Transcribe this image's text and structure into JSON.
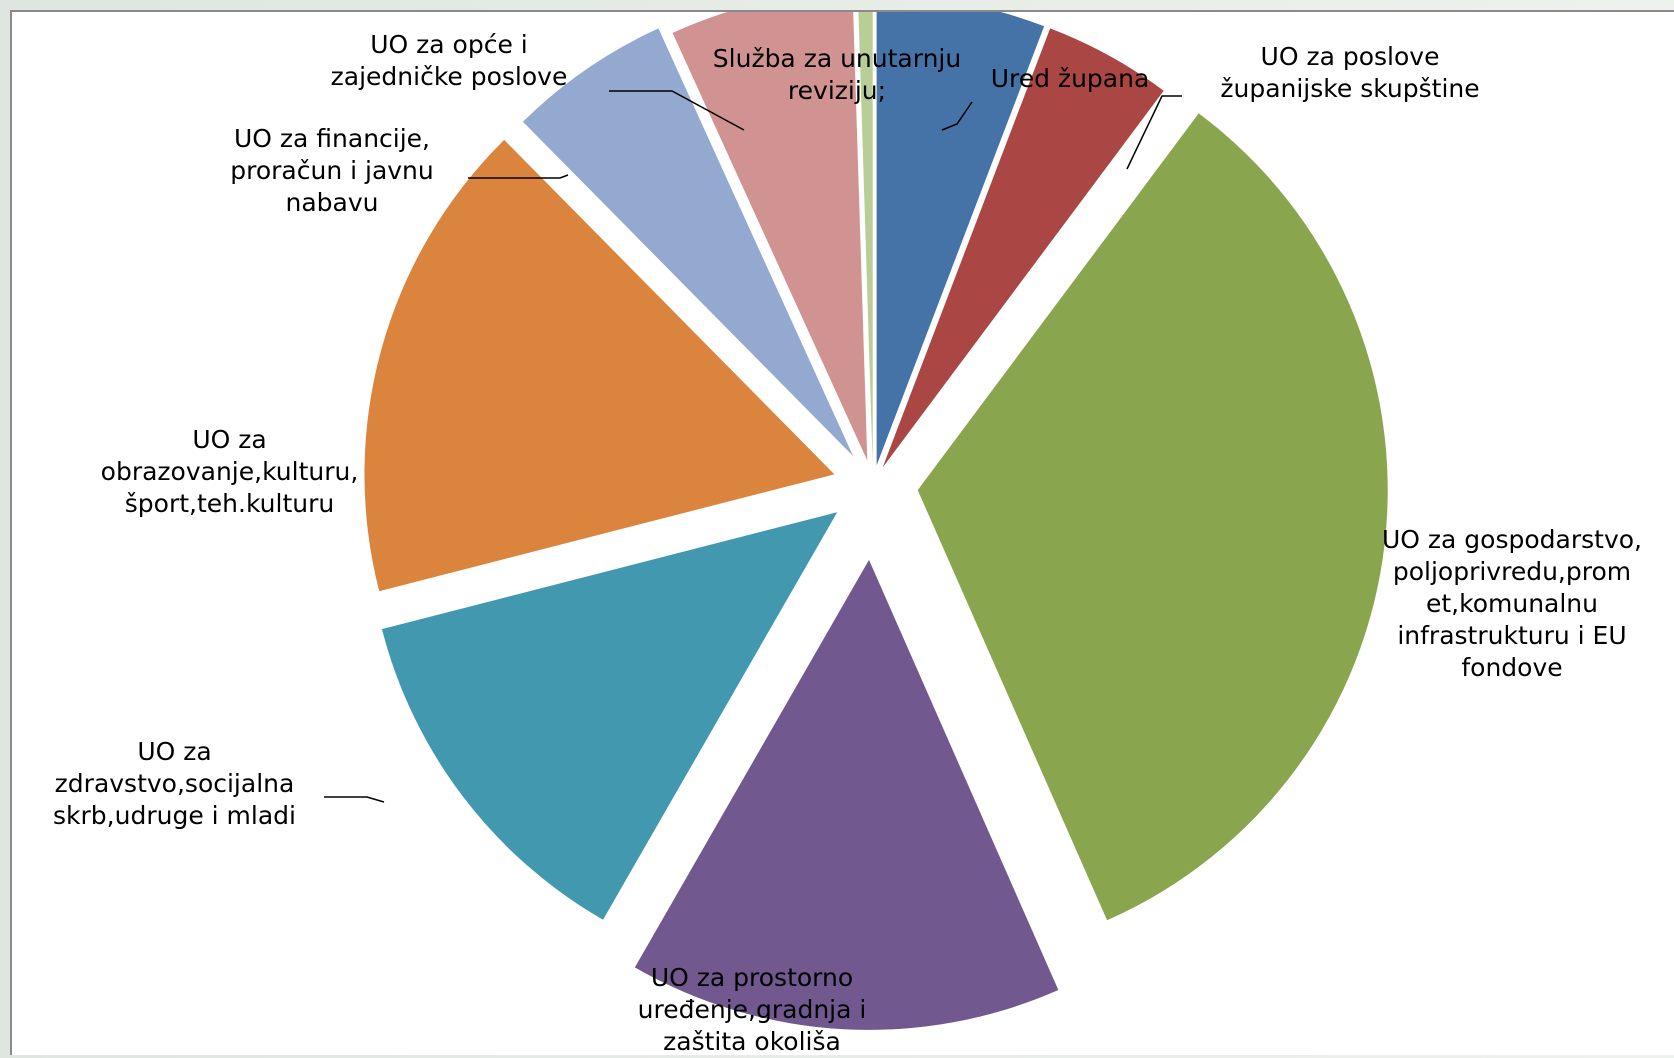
{
  "chart_data": {
    "type": "pie",
    "style": "exploded",
    "legend": "none",
    "slices": [
      {
        "label": "Ured župana",
        "value": 5.8,
        "color": "#4572A7"
      },
      {
        "label": "UO za poslove\nžupanijske skupštine",
        "value": 4.4,
        "color": "#AA4643"
      },
      {
        "label": "UO za gospodarstvo,\npoljoprivredu,prom\net,komunalnu\ninfrastrukturu i EU\nfondove",
        "value": 33.2,
        "color": "#89A54E"
      },
      {
        "label": "UO za prostorno\nuređenje,gradnja i\nzaštita okoliša",
        "value": 14.9,
        "color": "#71588F"
      },
      {
        "label": "UO za\nzdravstvo,socijalna\nskrb,udruge i mladi",
        "value": 12.7,
        "color": "#4198AF"
      },
      {
        "label": "UO za\nobrazovanje,kulturu,\nšport,teh.kulturu",
        "value": 16.6,
        "color": "#DB843D"
      },
      {
        "label": "UO za financije,\nproračun i javnu\nnabavu",
        "value": 5.6,
        "color": "#93A9CF"
      },
      {
        "label": "UO za opće i\nzajedničke poslove",
        "value": 6.3,
        "color": "#D19392"
      },
      {
        "label": "Služba za unutarnju\nreviziju;",
        "value": 0.5,
        "color": "#B9CD96"
      }
    ]
  }
}
